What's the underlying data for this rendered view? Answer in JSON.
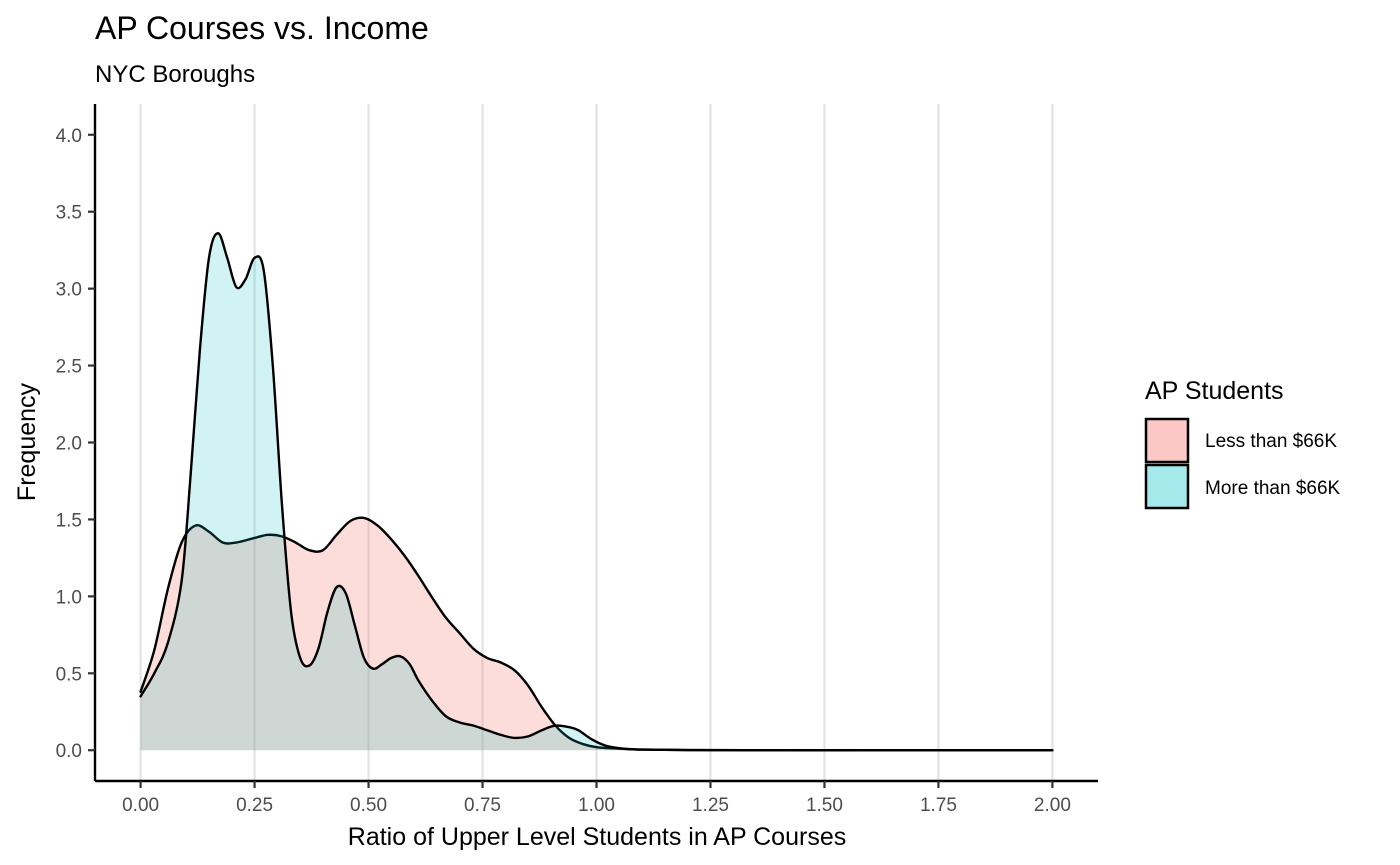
{
  "chart_data": {
    "type": "area",
    "subtype": "density",
    "title": "AP Courses vs. Income",
    "subtitle": "NYC Boroughs",
    "xlabel": "Ratio of Upper Level Students in AP Courses",
    "ylabel": "Frequency",
    "xlim": [
      -0.1,
      2.1
    ],
    "ylim": [
      -0.2,
      4.2
    ],
    "x_ticks": [
      "0.00",
      "0.25",
      "0.50",
      "0.75",
      "1.00",
      "1.25",
      "1.50",
      "1.75",
      "2.00"
    ],
    "y_ticks": [
      "0.0",
      "0.5",
      "1.0",
      "1.5",
      "2.0",
      "2.5",
      "3.0",
      "3.5",
      "4.0"
    ],
    "grid": "vertical major",
    "legend": {
      "title": "AP Students",
      "placement": "right"
    },
    "series": [
      {
        "name": "Less than $66K",
        "color": "#F8766D",
        "fill_opacity": 0.25,
        "x": [
          0.0,
          0.03,
          0.06,
          0.09,
          0.12,
          0.15,
          0.18,
          0.21,
          0.25,
          0.28,
          0.31,
          0.34,
          0.37,
          0.4,
          0.43,
          0.46,
          0.49,
          0.52,
          0.55,
          0.58,
          0.61,
          0.64,
          0.67,
          0.7,
          0.73,
          0.76,
          0.79,
          0.82,
          0.85,
          0.88,
          0.91,
          0.94,
          0.97,
          1.0,
          1.05,
          1.1,
          1.2,
          1.4,
          1.6,
          1.8,
          2.0
        ],
        "y": [
          0.38,
          0.65,
          1.05,
          1.35,
          1.46,
          1.42,
          1.35,
          1.35,
          1.38,
          1.4,
          1.39,
          1.35,
          1.3,
          1.3,
          1.4,
          1.49,
          1.51,
          1.46,
          1.37,
          1.26,
          1.13,
          0.99,
          0.86,
          0.76,
          0.66,
          0.6,
          0.57,
          0.52,
          0.42,
          0.28,
          0.16,
          0.08,
          0.04,
          0.02,
          0.01,
          0.004,
          0.001,
          0.0,
          0.0,
          0.0,
          0.0
        ]
      },
      {
        "name": "More than $66K",
        "color": "#00BFC4",
        "fill_opacity": 0.18,
        "x": [
          0.0,
          0.03,
          0.06,
          0.09,
          0.11,
          0.13,
          0.15,
          0.17,
          0.19,
          0.21,
          0.23,
          0.25,
          0.27,
          0.29,
          0.31,
          0.33,
          0.35,
          0.37,
          0.39,
          0.41,
          0.43,
          0.45,
          0.47,
          0.49,
          0.51,
          0.53,
          0.55,
          0.57,
          0.59,
          0.61,
          0.64,
          0.67,
          0.7,
          0.73,
          0.76,
          0.79,
          0.82,
          0.85,
          0.88,
          0.91,
          0.94,
          0.96,
          0.99,
          1.02,
          1.06,
          1.1,
          1.2,
          1.4,
          1.6,
          1.8,
          2.0
        ],
        "y": [
          0.35,
          0.5,
          0.7,
          1.1,
          1.8,
          2.6,
          3.2,
          3.36,
          3.2,
          3.01,
          3.06,
          3.2,
          3.12,
          2.5,
          1.6,
          0.9,
          0.6,
          0.55,
          0.66,
          0.9,
          1.06,
          1.02,
          0.81,
          0.6,
          0.53,
          0.56,
          0.6,
          0.61,
          0.56,
          0.45,
          0.32,
          0.22,
          0.18,
          0.16,
          0.13,
          0.1,
          0.08,
          0.09,
          0.13,
          0.16,
          0.15,
          0.13,
          0.07,
          0.03,
          0.01,
          0.004,
          0.001,
          0.0,
          0.0,
          0.0,
          0.0
        ]
      }
    ]
  }
}
